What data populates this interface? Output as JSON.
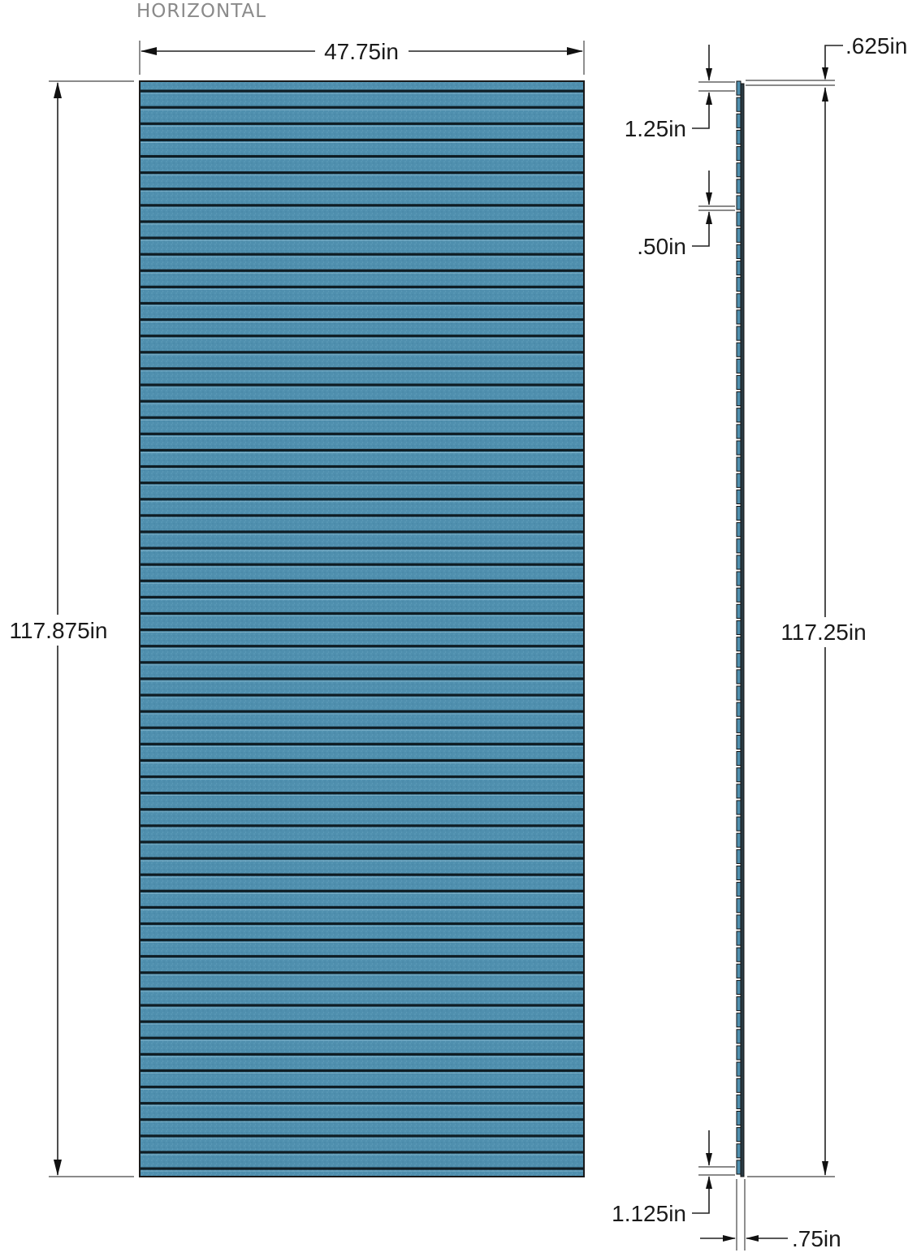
{
  "title": "HORIZONTAL",
  "colors": {
    "panel_fill": "#4f8fae",
    "panel_fill_light": "#6aa6c2",
    "groove": "#0f1d24",
    "outline": "#1a1a1a",
    "dimension": "#1a1a1a",
    "title": "#8a8a8a"
  },
  "panel": {
    "width": "47.75in",
    "height": "117.875in",
    "groove_count": 67
  },
  "side_profile": {
    "top_offset": ".625in",
    "first_slat": "1.25in",
    "gap": ".50in",
    "bottom_slat": "1.125in",
    "height": "117.25in",
    "thickness": ".75in"
  }
}
